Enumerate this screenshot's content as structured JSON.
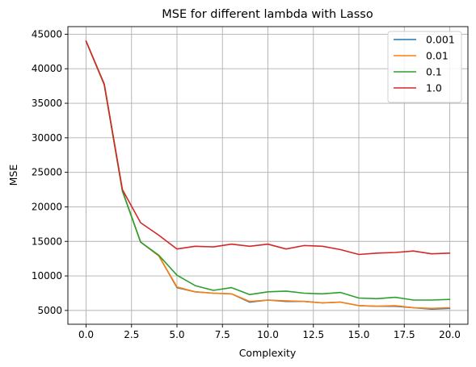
{
  "chart_data": {
    "type": "line",
    "title": "MSE for different lambda with Lasso",
    "xlabel": "Complexity",
    "ylabel": "MSE",
    "xlim": [
      -1.0,
      21.0
    ],
    "ylim": [
      3000,
      46100
    ],
    "xticks": [
      0.0,
      2.5,
      5.0,
      7.5,
      10.0,
      12.5,
      15.0,
      17.5,
      20.0
    ],
    "xtick_labels": [
      "0.0",
      "2.5",
      "5.0",
      "7.5",
      "10.0",
      "12.5",
      "15.0",
      "17.5",
      "20.0"
    ],
    "yticks": [
      5000,
      10000,
      15000,
      20000,
      25000,
      30000,
      35000,
      40000,
      45000
    ],
    "ytick_labels": [
      "5000",
      "10000",
      "15000",
      "20000",
      "25000",
      "30000",
      "35000",
      "40000",
      "45000"
    ],
    "grid": true,
    "legend_position": "top-right",
    "x": [
      0,
      1,
      2,
      3,
      4,
      5,
      6,
      7,
      8,
      9,
      10,
      11,
      12,
      13,
      14,
      15,
      16,
      17,
      18,
      19,
      20
    ],
    "series": [
      {
        "name": "0.001",
        "color": "#1f77b4",
        "values": [
          44000,
          37700,
          22300,
          14900,
          12900,
          8300,
          7700,
          7500,
          7400,
          6200,
          6500,
          6300,
          6300,
          6100,
          6200,
          5700,
          5600,
          5600,
          5400,
          5200,
          5300
        ]
      },
      {
        "name": "0.01",
        "color": "#ff7f0e",
        "values": [
          44000,
          37700,
          22300,
          14900,
          12900,
          8400,
          7700,
          7500,
          7400,
          6300,
          6500,
          6400,
          6300,
          6100,
          6200,
          5700,
          5600,
          5700,
          5400,
          5300,
          5400
        ]
      },
      {
        "name": "0.1",
        "color": "#2ca02c",
        "values": [
          44000,
          37700,
          22300,
          14900,
          13000,
          10100,
          8600,
          7900,
          8300,
          7300,
          7700,
          7800,
          7500,
          7400,
          7600,
          6800,
          6700,
          6900,
          6500,
          6500,
          6600
        ]
      },
      {
        "name": "1.0",
        "color": "#d62728",
        "values": [
          44000,
          37800,
          22500,
          17700,
          15900,
          13900,
          14300,
          14200,
          14600,
          14300,
          14600,
          13900,
          14400,
          14300,
          13800,
          13100,
          13300,
          13400,
          13600,
          13200,
          13300
        ]
      }
    ]
  }
}
